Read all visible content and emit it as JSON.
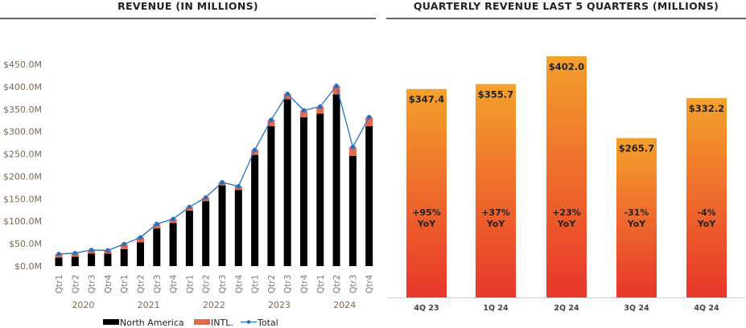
{
  "chart_data": [
    {
      "type": "bar",
      "stacked": true,
      "title": "REVENUE (IN MILLIONS)",
      "categories": [
        "Qtr1",
        "Qtr2",
        "Qtr3",
        "Qtr4",
        "Qtr1",
        "Qtr2",
        "Qtr3",
        "Qtr4",
        "Qtr1",
        "Qtr2",
        "Qtr3",
        "Qtr4",
        "Qtr1",
        "Qtr2",
        "Qtr3",
        "Qtr4",
        "Qtr1",
        "Qtr2",
        "Qtr3",
        "Qtr4"
      ],
      "groups": [
        "2020",
        "2021",
        "2022",
        "2023",
        "2024"
      ],
      "series": [
        {
          "name": "North America",
          "kind": "bar",
          "color": "#000000",
          "values": [
            19,
            21,
            28,
            28,
            38,
            53,
            84,
            96,
            124,
            145,
            180,
            170,
            248,
            312,
            372,
            332,
            340,
            383,
            246,
            312
          ]
        },
        {
          "name": "INTL.",
          "kind": "bar",
          "color": "#e8694a",
          "values": [
            8,
            8,
            8,
            7,
            11,
            11,
            10,
            9,
            8,
            8,
            7,
            8,
            11,
            14,
            12,
            15,
            16,
            19,
            20,
            20
          ]
        },
        {
          "name": "Total",
          "kind": "line",
          "color": "#1f72c4",
          "values": [
            27,
            29,
            36,
            35,
            49,
            64,
            94,
            105,
            132,
            153,
            187,
            178,
            259,
            326,
            384,
            347.4,
            355.7,
            402.0,
            265.7,
            332.2
          ]
        }
      ],
      "yticks": [
        "$0.0M",
        "$50.0M",
        "$100.0M",
        "$150.0M",
        "$200.0M",
        "$250.0M",
        "$300.0M",
        "$350.0M",
        "$400.0M",
        "$450.0M"
      ],
      "ylim": [
        0,
        450
      ],
      "grid": false,
      "legend": "bottom"
    },
    {
      "type": "bar",
      "title": "QUARTERLY REVENUE LAST 5 QUARTERS (MILLIONS)",
      "categories": [
        "4Q 23",
        "1Q 24",
        "2Q 24",
        "3Q 24",
        "4Q 24"
      ],
      "values": [
        347.4,
        355.7,
        402.0,
        265.7,
        332.2
      ],
      "value_labels": [
        "$347.4",
        "$355.7",
        "$402.0",
        "$265.7",
        "$332.2"
      ],
      "yoy_labels": [
        "+95%",
        "+37%",
        "+23%",
        "-31%",
        "-4%"
      ],
      "yoy_suffix": "YoY",
      "ylim": [
        0,
        402
      ],
      "colors": {
        "top": "#f4a12c",
        "bottom": "#e8362b"
      },
      "grid": false
    }
  ]
}
